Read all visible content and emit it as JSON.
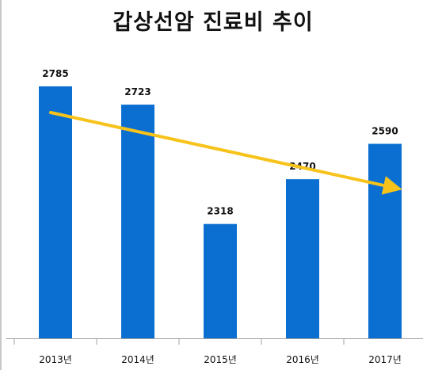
{
  "chart_data": {
    "type": "bar",
    "title": "갑상선암 진료비 추이",
    "categories": [
      "2013년",
      "2014년",
      "2015년",
      "2016년",
      "2017년"
    ],
    "series": [
      {
        "values": [
          2785,
          2723,
          2318,
          2470,
          2590
        ]
      }
    ],
    "data_labels": [
      "2785",
      "2723",
      "2318",
      "2470",
      "2590"
    ],
    "xlabel": "",
    "ylabel": "",
    "grid": false,
    "legend": "none",
    "trend_arrow": {
      "from": 2785,
      "to": 2590,
      "from_category": "2013년",
      "to_category": "2017년"
    },
    "colors": {
      "bar": "#0a6fd1",
      "trend_arrow": "#f7c31a",
      "axis": "#a0a0a0",
      "text": "#111111"
    }
  }
}
